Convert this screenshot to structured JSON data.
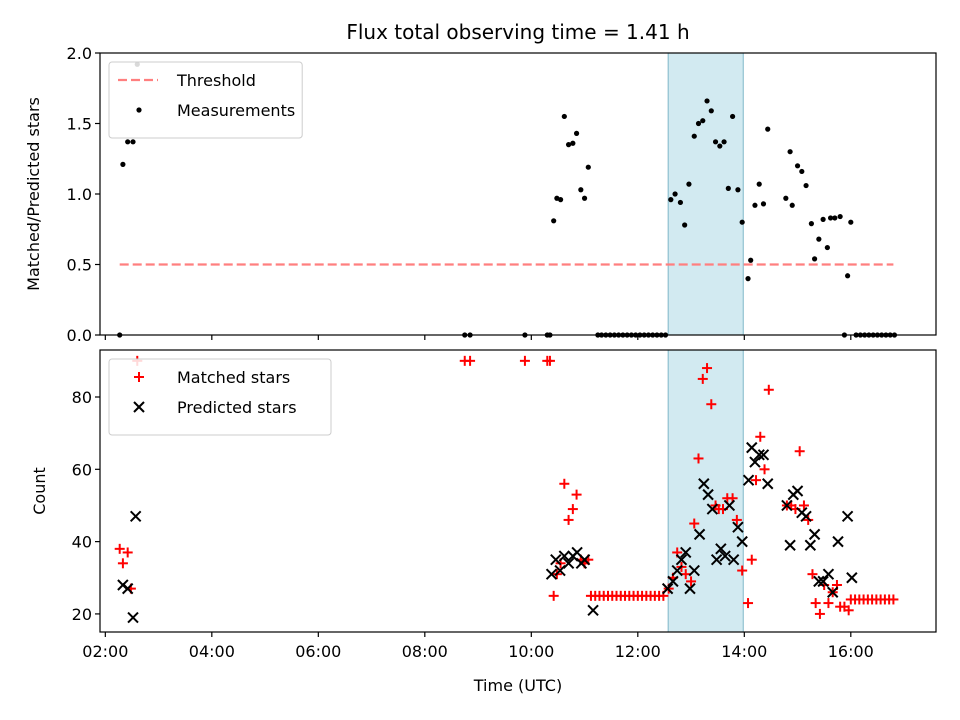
{
  "chart_data": {
    "title": "Flux total observing time = 1.41 h",
    "type": "scatter",
    "xlabel": "Time (UTC)",
    "x_unit": "hours UTC",
    "xlim": [
      1.9,
      17.6
    ],
    "xticks": [
      {
        "value": 2,
        "label": "02:00"
      },
      {
        "value": 4,
        "label": "04:00"
      },
      {
        "value": 6,
        "label": "06:00"
      },
      {
        "value": 8,
        "label": "08:00"
      },
      {
        "value": 10,
        "label": "10:00"
      },
      {
        "value": 12,
        "label": "12:00"
      },
      {
        "value": 14,
        "label": "14:00"
      },
      {
        "value": 16,
        "label": "16:00"
      }
    ],
    "highlight_span": {
      "x0": 12.57,
      "x1": 13.98,
      "color": "#add8e6"
    },
    "panels": [
      {
        "ylabel": "Matched/Predicted stars",
        "ylim": [
          0,
          2.0
        ],
        "yticks": [
          "0.0",
          "0.5",
          "1.0",
          "1.5",
          "2.0"
        ],
        "legend_position": "upper-left",
        "threshold": {
          "name": "Threshold",
          "y": 0.5,
          "x_range": [
            2.27,
            16.8
          ],
          "color": "#ff7f7f"
        },
        "series": [
          {
            "name": "Measurements",
            "marker": "dot",
            "color": "#000000",
            "points": [
              [
                2.27,
                0.0
              ],
              [
                2.33,
                1.21
              ],
              [
                2.42,
                1.37
              ],
              [
                2.52,
                1.37
              ],
              [
                2.6,
                1.92
              ],
              [
                8.75,
                0.0
              ],
              [
                8.85,
                0.0
              ],
              [
                9.88,
                0.0
              ],
              [
                10.3,
                0.0
              ],
              [
                10.35,
                0.0
              ],
              [
                10.42,
                0.81
              ],
              [
                10.48,
                0.97
              ],
              [
                10.55,
                0.96
              ],
              [
                10.62,
                1.55
              ],
              [
                10.7,
                1.35
              ],
              [
                10.78,
                1.36
              ],
              [
                10.85,
                1.43
              ],
              [
                10.93,
                1.03
              ],
              [
                11.0,
                0.97
              ],
              [
                11.07,
                1.19
              ],
              [
                11.25,
                0.0
              ],
              [
                11.32,
                0.0
              ],
              [
                11.4,
                0.0
              ],
              [
                11.48,
                0.0
              ],
              [
                11.56,
                0.0
              ],
              [
                11.64,
                0.0
              ],
              [
                11.72,
                0.0
              ],
              [
                11.8,
                0.0
              ],
              [
                11.88,
                0.0
              ],
              [
                11.96,
                0.0
              ],
              [
                12.04,
                0.0
              ],
              [
                12.12,
                0.0
              ],
              [
                12.2,
                0.0
              ],
              [
                12.28,
                0.0
              ],
              [
                12.36,
                0.0
              ],
              [
                12.44,
                0.0
              ],
              [
                12.52,
                0.0
              ],
              [
                12.62,
                0.96
              ],
              [
                12.7,
                1.0
              ],
              [
                12.8,
                0.94
              ],
              [
                12.88,
                0.78
              ],
              [
                12.96,
                1.07
              ],
              [
                13.06,
                1.41
              ],
              [
                13.14,
                1.5
              ],
              [
                13.22,
                1.52
              ],
              [
                13.3,
                1.66
              ],
              [
                13.38,
                1.59
              ],
              [
                13.46,
                1.37
              ],
              [
                13.54,
                1.34
              ],
              [
                13.62,
                1.37
              ],
              [
                13.7,
                1.04
              ],
              [
                13.78,
                1.55
              ],
              [
                13.88,
                1.03
              ],
              [
                13.96,
                0.8
              ],
              [
                14.07,
                0.4
              ],
              [
                14.12,
                0.53
              ],
              [
                14.2,
                0.92
              ],
              [
                14.28,
                1.07
              ],
              [
                14.36,
                0.93
              ],
              [
                14.44,
                1.46
              ],
              [
                14.78,
                0.97
              ],
              [
                14.86,
                1.3
              ],
              [
                14.9,
                0.92
              ],
              [
                15.0,
                1.2
              ],
              [
                15.08,
                1.16
              ],
              [
                15.16,
                1.06
              ],
              [
                15.26,
                0.79
              ],
              [
                15.32,
                0.54
              ],
              [
                15.4,
                0.68
              ],
              [
                15.48,
                0.82
              ],
              [
                15.56,
                0.62
              ],
              [
                15.62,
                0.83
              ],
              [
                15.7,
                0.83
              ],
              [
                15.8,
                0.84
              ],
              [
                15.94,
                0.42
              ],
              [
                16.0,
                0.8
              ],
              [
                15.88,
                0.0
              ],
              [
                16.1,
                0.0
              ],
              [
                16.18,
                0.0
              ],
              [
                16.26,
                0.0
              ],
              [
                16.34,
                0.0
              ],
              [
                16.42,
                0.0
              ],
              [
                16.5,
                0.0
              ],
              [
                16.58,
                0.0
              ],
              [
                16.66,
                0.0
              ],
              [
                16.74,
                0.0
              ],
              [
                16.82,
                0.0
              ]
            ]
          }
        ]
      },
      {
        "ylabel": "Count",
        "ylim": [
          15,
          93
        ],
        "yticks": [
          "20",
          "40",
          "60",
          "80"
        ],
        "legend_position": "upper-left",
        "series": [
          {
            "name": "Matched stars",
            "marker": "plus",
            "color": "#ff0000",
            "points": [
              [
                2.27,
                38
              ],
              [
                2.33,
                34
              ],
              [
                2.42,
                37
              ],
              [
                2.48,
                27
              ],
              [
                2.6,
                90
              ],
              [
                8.75,
                90
              ],
              [
                8.85,
                90
              ],
              [
                9.88,
                90
              ],
              [
                10.3,
                90
              ],
              [
                10.35,
                90
              ],
              [
                10.42,
                25
              ],
              [
                10.48,
                31
              ],
              [
                10.55,
                34
              ],
              [
                10.62,
                56
              ],
              [
                10.7,
                46
              ],
              [
                10.78,
                49
              ],
              [
                10.85,
                53
              ],
              [
                10.93,
                35
              ],
              [
                11.0,
                34
              ],
              [
                11.07,
                35
              ],
              [
                11.12,
                25
              ],
              [
                11.2,
                25
              ],
              [
                11.28,
                25
              ],
              [
                11.36,
                25
              ],
              [
                11.44,
                25
              ],
              [
                11.52,
                25
              ],
              [
                11.6,
                25
              ],
              [
                11.68,
                25
              ],
              [
                11.76,
                25
              ],
              [
                11.84,
                25
              ],
              [
                11.92,
                25
              ],
              [
                12.0,
                25
              ],
              [
                12.08,
                25
              ],
              [
                12.16,
                25
              ],
              [
                12.24,
                25
              ],
              [
                12.32,
                25
              ],
              [
                12.4,
                25
              ],
              [
                12.48,
                25
              ],
              [
                12.58,
                27
              ],
              [
                12.66,
                30
              ],
              [
                12.74,
                37
              ],
              [
                12.82,
                33
              ],
              [
                12.9,
                31
              ],
              [
                13.0,
                29
              ],
              [
                13.06,
                45
              ],
              [
                13.14,
                63
              ],
              [
                13.22,
                85
              ],
              [
                13.3,
                88
              ],
              [
                13.38,
                78
              ],
              [
                13.46,
                50
              ],
              [
                13.52,
                49
              ],
              [
                13.6,
                49
              ],
              [
                13.68,
                52
              ],
              [
                13.78,
                52
              ],
              [
                13.86,
                46
              ],
              [
                13.96,
                32
              ],
              [
                14.07,
                23
              ],
              [
                14.14,
                35
              ],
              [
                14.22,
                57
              ],
              [
                14.3,
                69
              ],
              [
                14.38,
                60
              ],
              [
                14.46,
                82
              ],
              [
                14.8,
                50
              ],
              [
                14.88,
                50
              ],
              [
                14.96,
                49
              ],
              [
                15.04,
                65
              ],
              [
                15.12,
                50
              ],
              [
                15.2,
                46
              ],
              [
                15.28,
                31
              ],
              [
                15.34,
                23
              ],
              [
                15.42,
                20
              ],
              [
                15.5,
                28
              ],
              [
                15.58,
                23
              ],
              [
                15.66,
                26
              ],
              [
                15.74,
                28
              ],
              [
                15.8,
                22
              ],
              [
                15.88,
                22
              ],
              [
                15.96,
                21
              ],
              [
                16.0,
                24
              ],
              [
                16.08,
                24
              ],
              [
                16.16,
                24
              ],
              [
                16.24,
                24
              ],
              [
                16.32,
                24
              ],
              [
                16.4,
                24
              ],
              [
                16.48,
                24
              ],
              [
                16.56,
                24
              ],
              [
                16.64,
                24
              ],
              [
                16.72,
                24
              ],
              [
                16.8,
                24
              ]
            ]
          },
          {
            "name": "Predicted stars",
            "marker": "x",
            "color": "#000000",
            "points": [
              [
                2.33,
                28
              ],
              [
                2.42,
                27
              ],
              [
                2.52,
                19
              ],
              [
                2.57,
                47
              ],
              [
                10.38,
                31
              ],
              [
                10.46,
                35
              ],
              [
                10.54,
                32
              ],
              [
                10.62,
                36
              ],
              [
                10.7,
                34
              ],
              [
                10.78,
                36
              ],
              [
                10.86,
                37
              ],
              [
                10.94,
                34
              ],
              [
                11.0,
                35
              ],
              [
                11.16,
                21
              ],
              [
                12.56,
                27
              ],
              [
                12.66,
                29
              ],
              [
                12.74,
                32
              ],
              [
                12.82,
                35
              ],
              [
                12.9,
                37
              ],
              [
                12.98,
                27
              ],
              [
                13.06,
                32
              ],
              [
                13.16,
                42
              ],
              [
                13.24,
                56
              ],
              [
                13.32,
                53
              ],
              [
                13.4,
                49
              ],
              [
                13.48,
                35
              ],
              [
                13.56,
                38
              ],
              [
                13.64,
                36
              ],
              [
                13.72,
                50
              ],
              [
                13.8,
                35
              ],
              [
                13.88,
                44
              ],
              [
                13.96,
                40
              ],
              [
                14.08,
                57
              ],
              [
                14.14,
                66
              ],
              [
                14.2,
                62
              ],
              [
                14.28,
                64
              ],
              [
                14.36,
                64
              ],
              [
                14.44,
                56
              ],
              [
                14.8,
                50
              ],
              [
                14.86,
                39
              ],
              [
                14.92,
                53
              ],
              [
                15.0,
                54
              ],
              [
                15.08,
                48
              ],
              [
                15.16,
                47
              ],
              [
                15.24,
                39
              ],
              [
                15.32,
                42
              ],
              [
                15.4,
                29
              ],
              [
                15.48,
                29
              ],
              [
                15.58,
                31
              ],
              [
                15.66,
                26
              ],
              [
                15.76,
                40
              ],
              [
                15.94,
                47
              ],
              [
                16.02,
                30
              ]
            ]
          }
        ]
      }
    ]
  }
}
